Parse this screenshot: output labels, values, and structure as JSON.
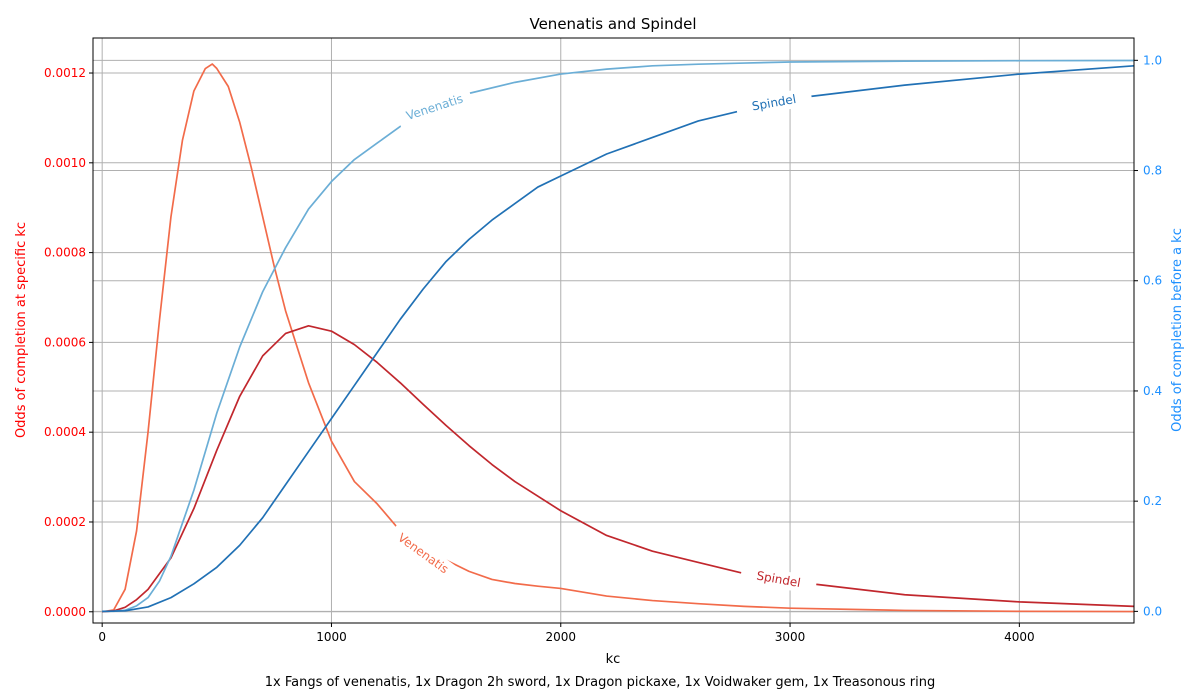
{
  "chart_data": {
    "type": "line",
    "title": "Venenatis and Spindel",
    "xlabel": "kc",
    "ylabel_left": "Odds of completion at specific kc",
    "ylabel_right": "Odds of completion before a kc",
    "footnote": "1x Fangs of venenatis, 1x Dragon 2h sword, 1x Dragon pickaxe, 1x Voidwaker gem, 1x Treasonous ring",
    "xlim": [
      -40,
      4500
    ],
    "ylim_left": [
      -2.5e-05,
      0.001278
    ],
    "ylim_right": [
      -0.0211,
      1.0405
    ],
    "xticks": [
      0,
      1000,
      2000,
      3000,
      4000
    ],
    "xtick_labels": [
      "0",
      "1000",
      "2000",
      "3000",
      "4000"
    ],
    "yticks_left": [
      0,
      0.0002,
      0.0004,
      0.0006,
      0.0008,
      0.001,
      0.0012
    ],
    "ytick_labels_left": [
      "0.0000",
      "0.0002",
      "0.0004",
      "0.0006",
      "0.0008",
      "0.0010",
      "0.0012"
    ],
    "yticks_right": [
      0,
      0.2,
      0.4,
      0.6,
      0.8,
      1.0
    ],
    "ytick_labels_right": [
      "0.0",
      "0.2",
      "0.4",
      "0.6",
      "0.8",
      "1.0"
    ],
    "grid": true,
    "colors": {
      "left_axis": "#ff0000",
      "right_axis": "#1e90ff",
      "venenatis_pdf": "#f26b4a",
      "spindel_pdf": "#c1272d",
      "venenatis_cdf": "#6baed6",
      "spindel_cdf": "#2171b5"
    },
    "series": [
      {
        "name": "Venenatis",
        "axis": "left",
        "color": "#f26b4a",
        "x": [
          0,
          50,
          100,
          150,
          200,
          250,
          300,
          350,
          400,
          450,
          480,
          500,
          550,
          600,
          650,
          700,
          750,
          800,
          900,
          1000,
          1100,
          1200,
          1300,
          1400,
          1500,
          1600,
          1700,
          1800,
          1900,
          2000,
          2200,
          2400,
          2600,
          2800,
          3000,
          3500,
          4000,
          4500
        ],
        "y": [
          0,
          4e-06,
          5e-05,
          0.00018,
          0.0004,
          0.00065,
          0.00088,
          0.00105,
          0.00116,
          0.00121,
          0.00122,
          0.00121,
          0.00117,
          0.00109,
          0.00099,
          0.00088,
          0.00077,
          0.00067,
          0.00051,
          0.00038,
          0.00029,
          0.00024,
          0.00018,
          0.00013,
          0.000115,
          9e-05,
          7.2e-05,
          6.3e-05,
          5.7e-05,
          5.2e-05,
          3.5e-05,
          2.5e-05,
          1.8e-05,
          1.2e-05,
          8e-06,
          3e-06,
          1e-06,
          5e-07
        ]
      },
      {
        "name": "Spindel",
        "axis": "left",
        "color": "#c1272d",
        "x": [
          0,
          50,
          100,
          150,
          200,
          300,
          400,
          500,
          600,
          700,
          800,
          900,
          1000,
          1100,
          1200,
          1300,
          1400,
          1500,
          1600,
          1700,
          1800,
          2000,
          2200,
          2400,
          2600,
          2800,
          3000,
          3500,
          4000,
          4500
        ],
        "y": [
          0,
          2e-06,
          1e-05,
          2.7e-05,
          5e-05,
          0.00012,
          0.00023,
          0.00036,
          0.00048,
          0.00057,
          0.00062,
          0.000637,
          0.000625,
          0.000595,
          0.000555,
          0.00051,
          0.000462,
          0.000415,
          0.00037,
          0.000328,
          0.00029,
          0.000225,
          0.00017,
          0.000135,
          0.00011,
          8.5e-05,
          6.8e-05,
          3.8e-05,
          2.2e-05,
          1.2e-05
        ]
      },
      {
        "name": "Venenatis",
        "axis": "right",
        "color": "#6baed6",
        "x": [
          0,
          50,
          100,
          150,
          200,
          250,
          300,
          350,
          400,
          500,
          600,
          700,
          800,
          900,
          1000,
          1100,
          1200,
          1300,
          1400,
          1500,
          1600,
          1800,
          2000,
          2200,
          2400,
          2600,
          2800,
          3000,
          3500,
          4000,
          4500
        ],
        "y": [
          0,
          0.0001,
          0.002,
          0.01,
          0.025,
          0.055,
          0.1,
          0.16,
          0.22,
          0.36,
          0.48,
          0.58,
          0.66,
          0.73,
          0.78,
          0.82,
          0.85,
          0.88,
          0.905,
          0.925,
          0.94,
          0.96,
          0.975,
          0.984,
          0.99,
          0.993,
          0.995,
          0.997,
          0.9985,
          0.9993,
          0.9997
        ]
      },
      {
        "name": "Spindel",
        "axis": "right",
        "color": "#2171b5",
        "x": [
          0,
          100,
          200,
          300,
          400,
          500,
          600,
          700,
          800,
          900,
          1000,
          1100,
          1200,
          1300,
          1400,
          1500,
          1600,
          1700,
          1800,
          1900,
          2000,
          2200,
          2400,
          2600,
          2800,
          3000,
          3200,
          3500,
          4000,
          4500
        ],
        "y": [
          0,
          0.001,
          0.008,
          0.025,
          0.05,
          0.08,
          0.12,
          0.17,
          0.23,
          0.29,
          0.35,
          0.41,
          0.47,
          0.53,
          0.585,
          0.635,
          0.675,
          0.71,
          0.74,
          0.77,
          0.79,
          0.83,
          0.86,
          0.89,
          0.91,
          0.93,
          0.94,
          0.955,
          0.975,
          0.99
        ]
      }
    ],
    "annotations": [
      {
        "text": "Venenatis",
        "series": 0,
        "x": 1400,
        "rotate": 36
      },
      {
        "text": "Spindel",
        "series": 1,
        "x": 2950,
        "rotate": 10
      },
      {
        "text": "Venenatis",
        "series": 2,
        "x": 1450,
        "rotate": -18
      },
      {
        "text": "Spindel",
        "series": 3,
        "x": 2930,
        "rotate": -10
      }
    ]
  }
}
